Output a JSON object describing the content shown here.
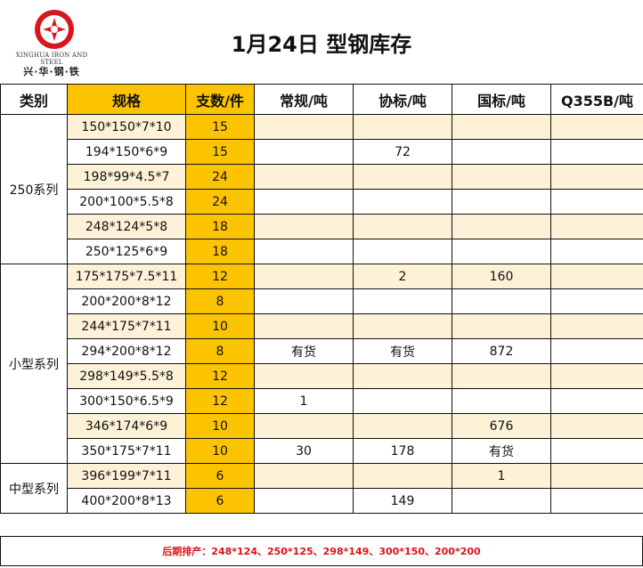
{
  "header": {
    "logo_en": "XINGHUA IRON AND STEEL",
    "logo_cn": "兴·华·钢·铁",
    "title": "1月24日 型钢库存"
  },
  "columns": [
    "类别",
    "规格",
    "支数/件",
    "常规/吨",
    "协标/吨",
    "国标/吨",
    "Q355B/吨"
  ],
  "groups": [
    {
      "category": "250系列",
      "rows": [
        {
          "spec": "150*150*7*10",
          "qty": "15",
          "regular": "",
          "assoc": "",
          "national": "",
          "q355b": ""
        },
        {
          "spec": "194*150*6*9",
          "qty": "15",
          "regular": "",
          "assoc": "72",
          "national": "",
          "q355b": ""
        },
        {
          "spec": "198*99*4.5*7",
          "qty": "24",
          "regular": "",
          "assoc": "",
          "national": "",
          "q355b": ""
        },
        {
          "spec": "200*100*5.5*8",
          "qty": "24",
          "regular": "",
          "assoc": "",
          "national": "",
          "q355b": ""
        },
        {
          "spec": "248*124*5*8",
          "qty": "18",
          "regular": "",
          "assoc": "",
          "national": "",
          "q355b": ""
        },
        {
          "spec": "250*125*6*9",
          "qty": "18",
          "regular": "",
          "assoc": "",
          "national": "",
          "q355b": ""
        }
      ]
    },
    {
      "category": "小型系列",
      "rows": [
        {
          "spec": "175*175*7.5*11",
          "qty": "12",
          "regular": "",
          "assoc": "2",
          "national": "160",
          "q355b": ""
        },
        {
          "spec": "200*200*8*12",
          "qty": "8",
          "regular": "",
          "assoc": "",
          "national": "",
          "q355b": ""
        },
        {
          "spec": "244*175*7*11",
          "qty": "10",
          "regular": "",
          "assoc": "",
          "national": "",
          "q355b": ""
        },
        {
          "spec": "294*200*8*12",
          "qty": "8",
          "regular": "有货",
          "assoc": "有货",
          "national": "872",
          "q355b": ""
        },
        {
          "spec": "298*149*5.5*8",
          "qty": "12",
          "regular": "",
          "assoc": "",
          "national": "",
          "q355b": ""
        },
        {
          "spec": "300*150*6.5*9",
          "qty": "12",
          "regular": "1",
          "assoc": "",
          "national": "",
          "q355b": ""
        },
        {
          "spec": "346*174*6*9",
          "qty": "10",
          "regular": "",
          "assoc": "",
          "national": "676",
          "q355b": ""
        },
        {
          "spec": "350*175*7*11",
          "qty": "10",
          "regular": "30",
          "assoc": "178",
          "national": "有货",
          "q355b": ""
        }
      ]
    },
    {
      "category": "中型系列",
      "rows": [
        {
          "spec": "396*199*7*11",
          "qty": "6",
          "regular": "",
          "assoc": "",
          "national": "1",
          "q355b": ""
        },
        {
          "spec": "400*200*8*13",
          "qty": "6",
          "regular": "",
          "assoc": "149",
          "national": "",
          "q355b": ""
        }
      ]
    }
  ],
  "footer": "后期排产：248*124、250*125、298*149、300*150、200*200",
  "colors": {
    "accent": "#fcc300",
    "alt_row": "#fdf2d7",
    "footer_text": "#e0111b",
    "logo_red": "#d8161e"
  }
}
